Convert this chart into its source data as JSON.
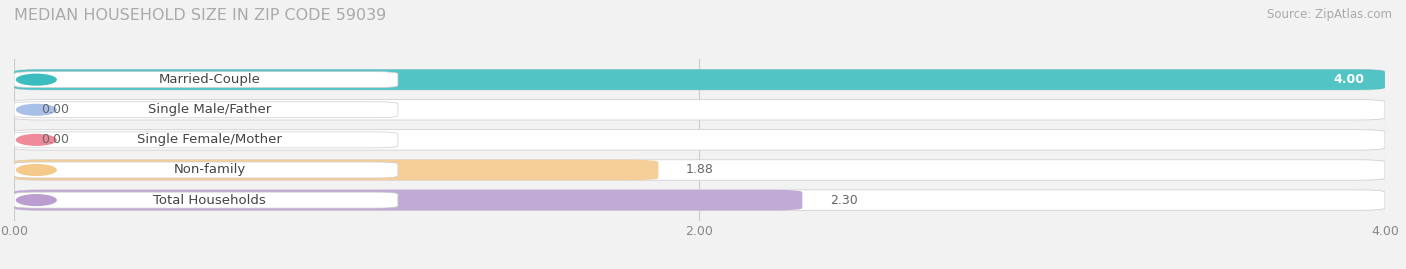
{
  "title": "MEDIAN HOUSEHOLD SIZE IN ZIP CODE 59039",
  "source": "Source: ZipAtlas.com",
  "categories": [
    "Married-Couple",
    "Single Male/Father",
    "Single Female/Mother",
    "Non-family",
    "Total Households"
  ],
  "values": [
    4.0,
    0.0,
    0.0,
    1.88,
    2.3
  ],
  "bar_colors": [
    "#3bbcbe",
    "#a8c0e8",
    "#f0899a",
    "#f5c98a",
    "#b99ecf"
  ],
  "xlim": [
    0,
    4.0
  ],
  "xticks": [
    0.0,
    2.0,
    4.0
  ],
  "xtick_labels": [
    "0.00",
    "2.00",
    "4.00"
  ],
  "bg_color": "#f2f2f2",
  "bar_bg_color": "#e8e8eb",
  "title_fontsize": 11.5,
  "source_fontsize": 8.5,
  "label_fontsize": 9.5,
  "value_fontsize": 9,
  "bar_height": 0.68
}
